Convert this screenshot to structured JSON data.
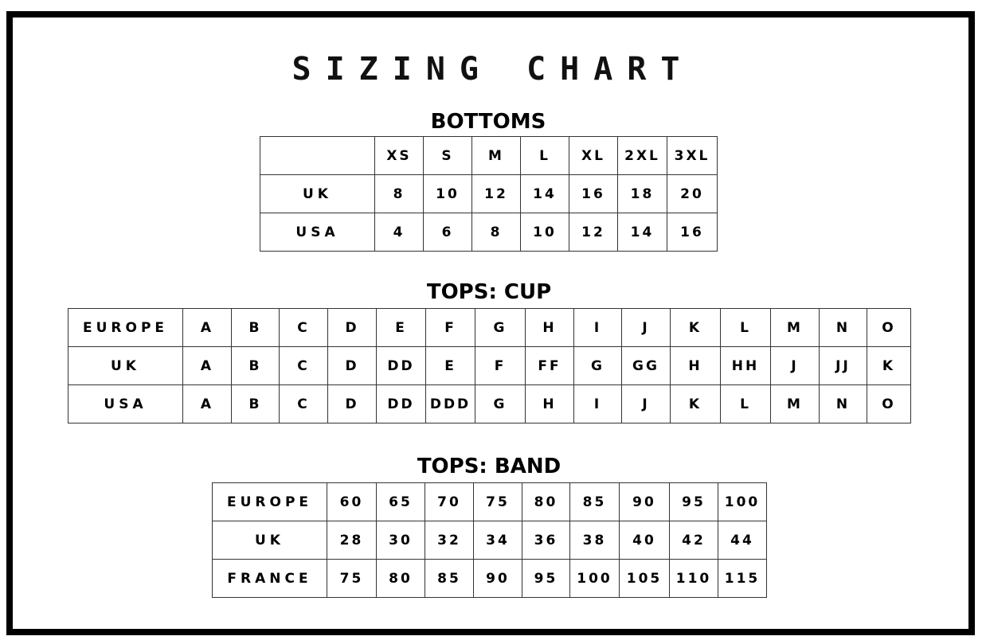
{
  "title": "SIZING CHART",
  "bottoms": {
    "heading": "BOTTOMS",
    "header": [
      "",
      "XS",
      "S",
      "M",
      "L",
      "XL",
      "2XL",
      "3XL"
    ],
    "rows": [
      [
        "UK",
        "8",
        "10",
        "12",
        "14",
        "16",
        "18",
        "20"
      ],
      [
        "USA",
        "4",
        "6",
        "8",
        "10",
        "12",
        "14",
        "16"
      ]
    ]
  },
  "cup": {
    "heading": "TOPS: CUP",
    "rows": [
      [
        "EUROPE",
        "A",
        "B",
        "C",
        "D",
        "E",
        "F",
        "G",
        "H",
        "I",
        "J",
        "K",
        "L",
        "M",
        "N",
        "O"
      ],
      [
        "UK",
        "A",
        "B",
        "C",
        "D",
        "DD",
        "E",
        "F",
        "FF",
        "G",
        "GG",
        "H",
        "HH",
        "J",
        "JJ",
        "K"
      ],
      [
        "USA",
        "A",
        "B",
        "C",
        "D",
        "DD",
        "DDD",
        "G",
        "H",
        "I",
        "J",
        "K",
        "L",
        "M",
        "N",
        "O"
      ]
    ]
  },
  "band": {
    "heading": "TOPS: BAND",
    "rows": [
      [
        "EUROPE",
        "60",
        "65",
        "70",
        "75",
        "80",
        "85",
        "90",
        "95",
        "100"
      ],
      [
        "UK",
        "28",
        "30",
        "32",
        "34",
        "36",
        "38",
        "40",
        "42",
        "44"
      ],
      [
        "FRANCE",
        "75",
        "80",
        "85",
        "90",
        "95",
        "100",
        "105",
        "110",
        "115"
      ]
    ]
  }
}
